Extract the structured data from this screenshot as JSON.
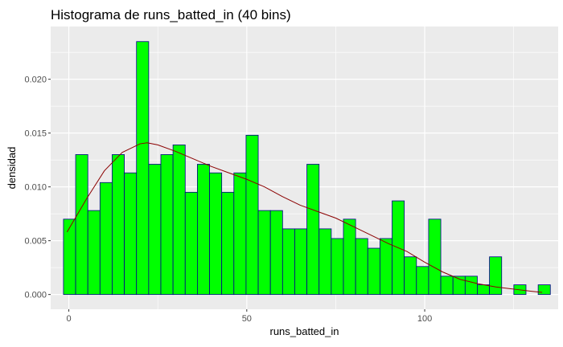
{
  "chart_data": {
    "type": "histogram",
    "title": "Histograma de runs_batted_in (40 bins)",
    "xlabel": "runs_batted_in",
    "ylabel": "densidad",
    "xlim": [
      -5.1,
      137.5
    ],
    "ylim": [
      -0.00137,
      0.0249
    ],
    "x_ticks": [
      0,
      50,
      100
    ],
    "y_ticks": [
      0.0,
      0.005,
      0.01,
      0.015,
      0.02
    ],
    "y_tick_labels": [
      "0.000",
      "0.005",
      "0.010",
      "0.015",
      "0.020"
    ],
    "grid": true,
    "legend": "none",
    "bin_start": -1.5,
    "bin_width": 3.42,
    "values": [
      0.007,
      0.013,
      0.0078,
      0.0104,
      0.013,
      0.0113,
      0.0235,
      0.0121,
      0.013,
      0.0139,
      0.0095,
      0.0121,
      0.0113,
      0.0095,
      0.0113,
      0.0148,
      0.0078,
      0.0078,
      0.0061,
      0.0061,
      0.0121,
      0.0061,
      0.0052,
      0.007,
      0.0052,
      0.0043,
      0.0052,
      0.0087,
      0.0035,
      0.0026,
      0.007,
      0.0017,
      0.0017,
      0.0017,
      0.0009,
      0.0035,
      0.0,
      0.0009,
      0.0,
      0.0009
    ],
    "density_curve": {
      "x": [
        -0.5,
        5,
        10,
        15,
        20,
        22,
        25,
        30,
        35,
        40,
        45,
        50,
        55,
        60,
        65,
        70,
        75,
        80,
        85,
        90,
        95,
        100,
        105,
        110,
        115,
        120,
        125,
        130,
        133
      ],
      "y": [
        0.0058,
        0.0089,
        0.0115,
        0.0132,
        0.014,
        0.0141,
        0.0139,
        0.0133,
        0.0126,
        0.0119,
        0.0113,
        0.0107,
        0.01,
        0.0091,
        0.0083,
        0.0077,
        0.0071,
        0.0063,
        0.0055,
        0.0047,
        0.004,
        0.003,
        0.0021,
        0.0014,
        0.001,
        0.0007,
        0.0005,
        0.0003,
        0.0002
      ]
    },
    "colors": {
      "bar_fill": "#00ff00",
      "bar_stroke": "#00008b",
      "curve": "#8b0000",
      "panel": "#ebebeb",
      "grid": "#ffffff"
    }
  }
}
